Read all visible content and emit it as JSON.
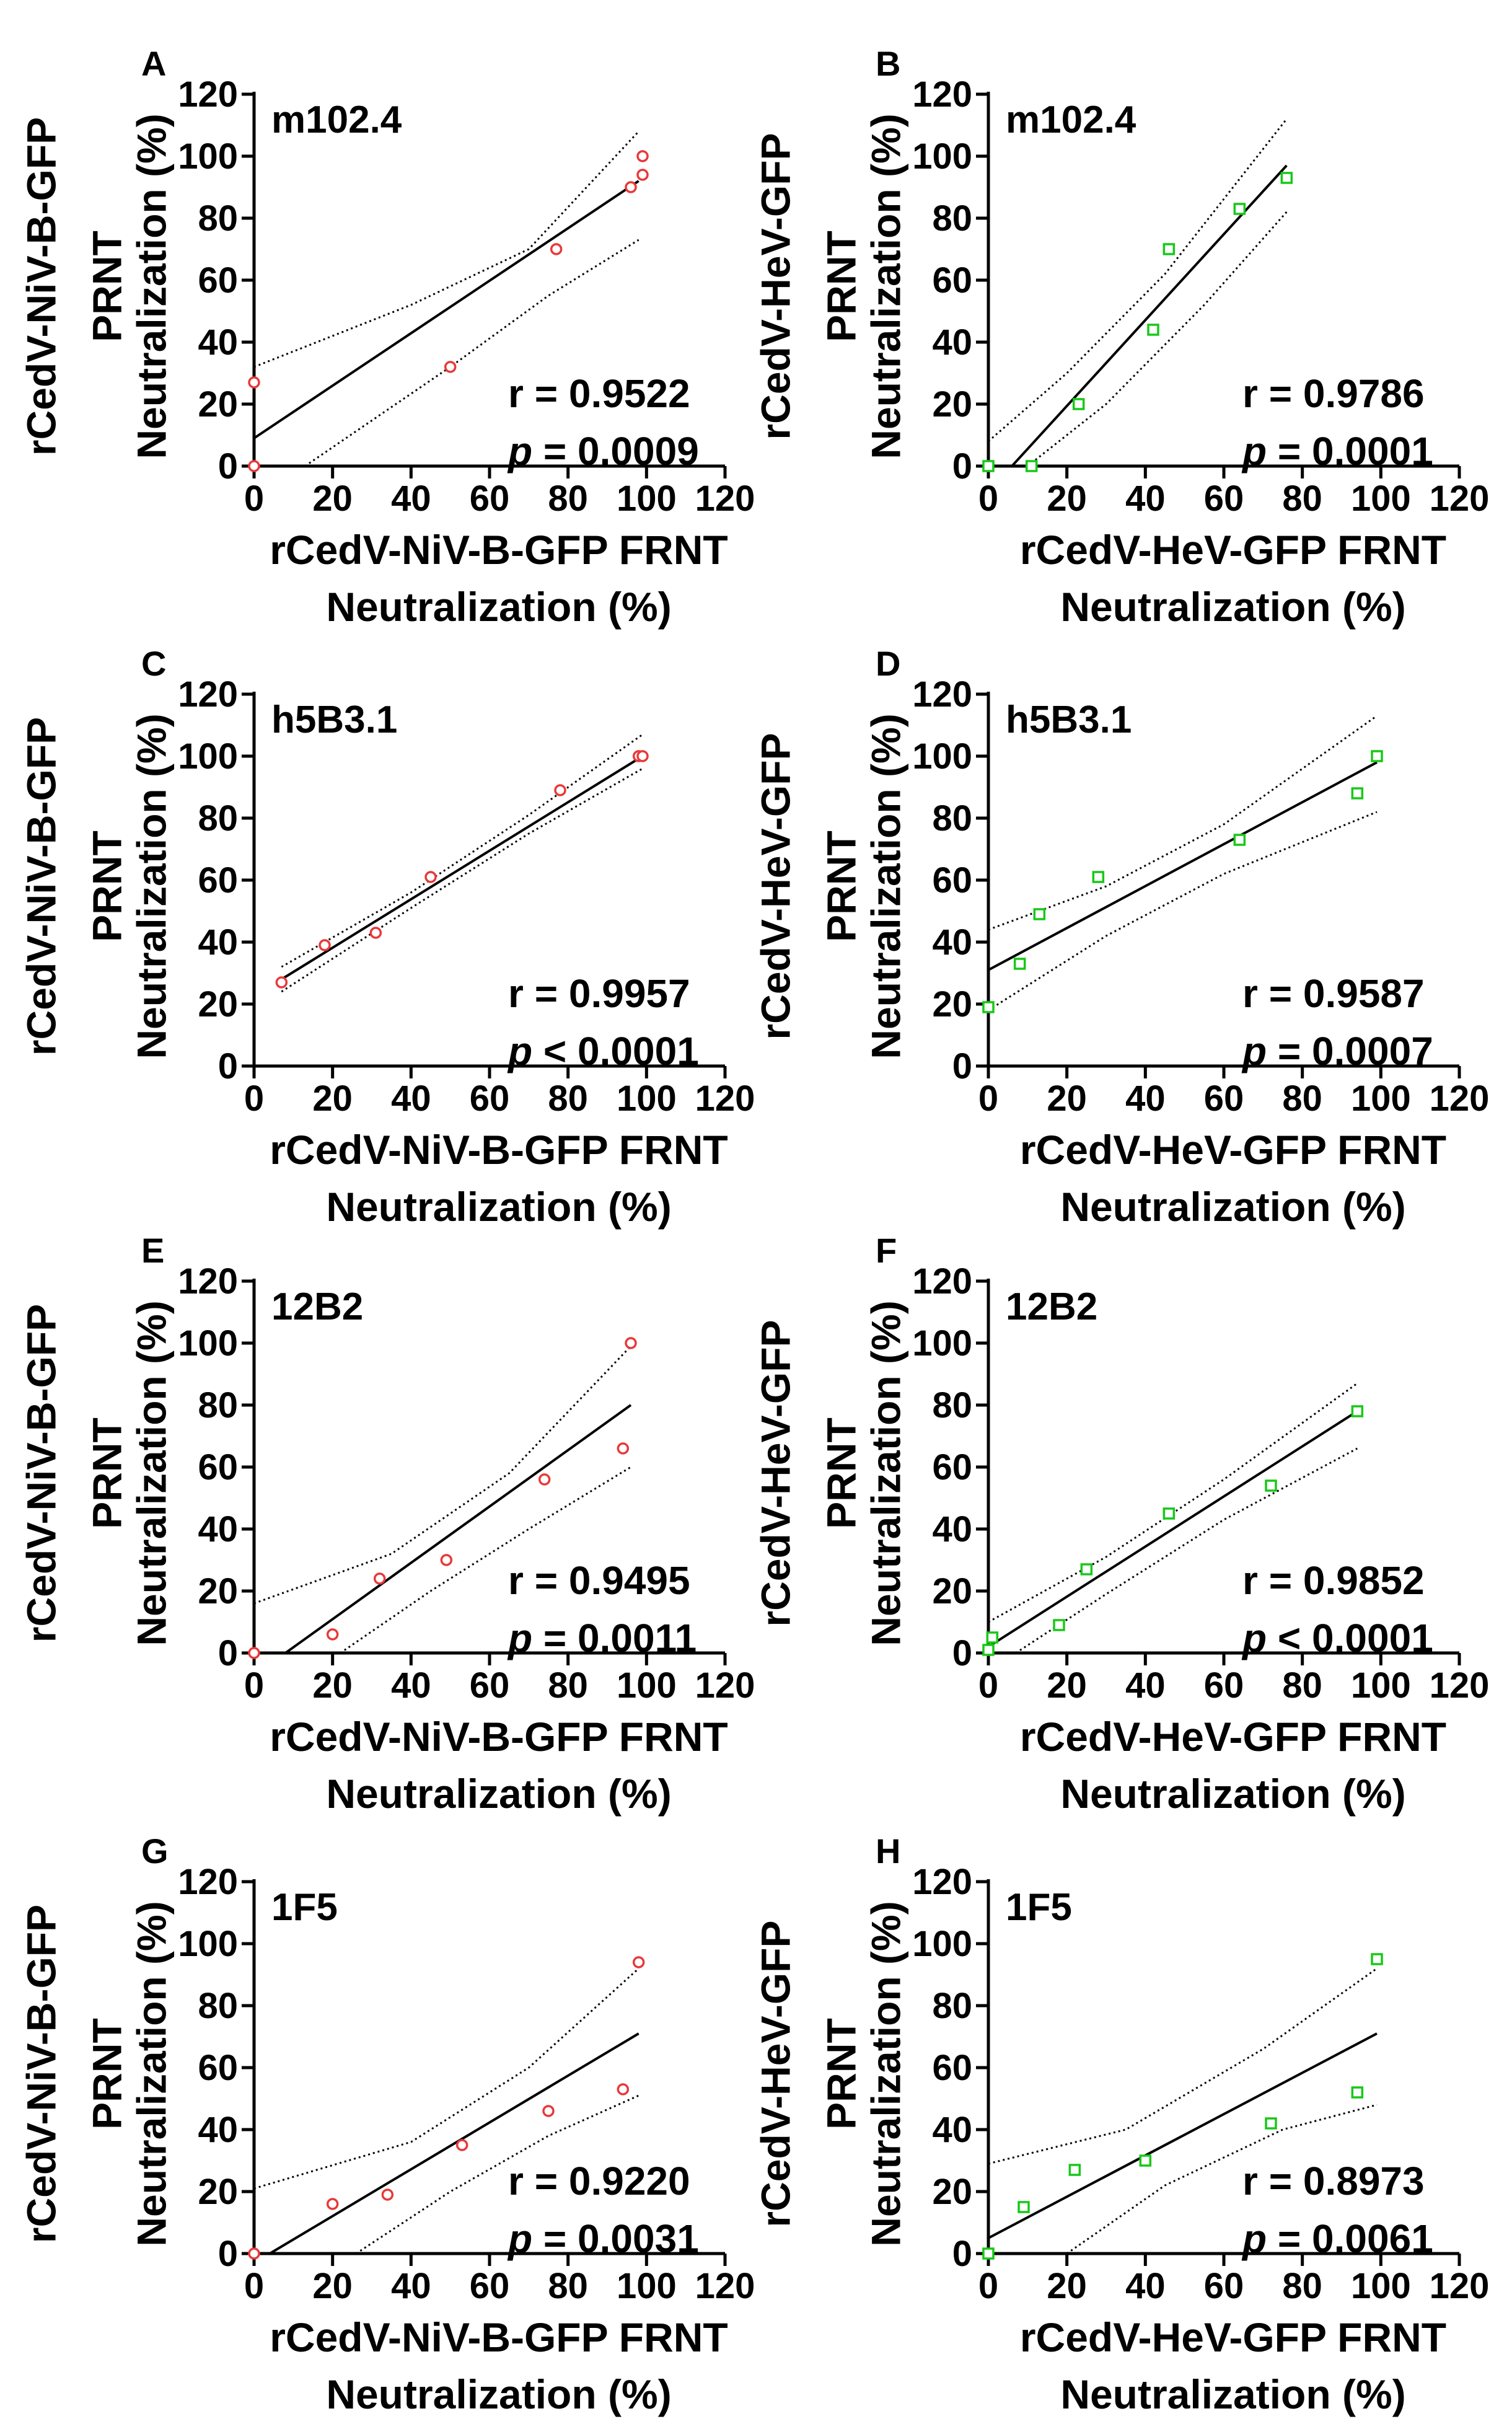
{
  "figure": {
    "colors": {
      "niv": "#e8393a",
      "hev": "#18c818",
      "line": "#000000"
    }
  },
  "chart_data": [
    {
      "type": "scatter",
      "panel_letter": "A",
      "antibody": "m102.4",
      "ylabel": [
        "rCedV-NiV-B-GFP",
        "PRNT",
        "Neutralization (%)"
      ],
      "xlabel": [
        "rCedV-NiV-B-GFP FRNT",
        "Neutralization (%)"
      ],
      "xlim": [
        0,
        120
      ],
      "ylim": [
        0,
        120
      ],
      "x_ticks": [
        "0",
        "20",
        "40",
        "60",
        "80",
        "100",
        "120"
      ],
      "y_ticks": [
        "0",
        "20",
        "40",
        "60",
        "80",
        "100",
        "120"
      ],
      "points": [
        [
          0,
          0
        ],
        [
          0,
          27
        ],
        [
          50,
          32
        ],
        [
          77,
          70
        ],
        [
          96,
          90
        ],
        [
          99,
          94
        ],
        [
          99,
          100
        ]
      ],
      "fit": [
        [
          0,
          9
        ],
        [
          98,
          92
        ]
      ],
      "ci_upper": [
        [
          0,
          32
        ],
        [
          40,
          52
        ],
        [
          70,
          70
        ],
        [
          98,
          108
        ]
      ],
      "ci_lower": [
        [
          13,
          0
        ],
        [
          50,
          32
        ],
        [
          75,
          55
        ],
        [
          98,
          73
        ]
      ],
      "r_text": "r = 0.9522",
      "p_label": "p",
      "p_value": "= 0.0009",
      "marker": "circle",
      "series_color": "niv"
    },
    {
      "type": "scatter",
      "panel_letter": "B",
      "antibody": "m102.4",
      "ylabel": [
        "rCedV-HeV-GFP",
        "PRNT",
        "Neutralization (%)"
      ],
      "xlabel": [
        "rCedV-HeV-GFP FRNT",
        "Neutralization (%)"
      ],
      "xlim": [
        0,
        120
      ],
      "ylim": [
        0,
        120
      ],
      "x_ticks": [
        "0",
        "20",
        "40",
        "60",
        "80",
        "100",
        "120"
      ],
      "y_ticks": [
        "0",
        "20",
        "40",
        "60",
        "80",
        "100",
        "120"
      ],
      "points": [
        [
          0,
          0
        ],
        [
          11,
          0
        ],
        [
          23,
          20
        ],
        [
          42,
          44
        ],
        [
          46,
          70
        ],
        [
          64,
          83
        ],
        [
          76,
          93
        ]
      ],
      "fit": [
        [
          6,
          0
        ],
        [
          76,
          97
        ]
      ],
      "ci_upper": [
        [
          0,
          8
        ],
        [
          20,
          30
        ],
        [
          45,
          62
        ],
        [
          76,
          112
        ]
      ],
      "ci_lower": [
        [
          10,
          0
        ],
        [
          30,
          20
        ],
        [
          55,
          52
        ],
        [
          76,
          82
        ]
      ],
      "r_text": "r = 0.9786",
      "p_label": "p",
      "p_value": "= 0.0001",
      "marker": "square",
      "series_color": "hev"
    },
    {
      "type": "scatter",
      "panel_letter": "C",
      "antibody": "h5B3.1",
      "ylabel": [
        "rCedV-NiV-B-GFP",
        "PRNT",
        "Neutralization (%)"
      ],
      "xlabel": [
        "rCedV-NiV-B-GFP FRNT",
        "Neutralization (%)"
      ],
      "xlim": [
        0,
        120
      ],
      "ylim": [
        0,
        120
      ],
      "x_ticks": [
        "0",
        "20",
        "40",
        "60",
        "80",
        "100",
        "120"
      ],
      "y_ticks": [
        "0",
        "20",
        "40",
        "60",
        "80",
        "100",
        "120"
      ],
      "points": [
        [
          7,
          27
        ],
        [
          18,
          39
        ],
        [
          31,
          43
        ],
        [
          45,
          61
        ],
        [
          78,
          89
        ],
        [
          98,
          100
        ],
        [
          99,
          100
        ]
      ],
      "fit": [
        [
          7,
          28
        ],
        [
          99,
          100
        ]
      ],
      "ci_upper": [
        [
          7,
          32
        ],
        [
          40,
          56
        ],
        [
          70,
          81
        ],
        [
          99,
          107
        ]
      ],
      "ci_lower": [
        [
          7,
          24
        ],
        [
          40,
          51
        ],
        [
          70,
          75
        ],
        [
          99,
          96
        ]
      ],
      "r_text": "r = 0.9957",
      "p_label": "p",
      "p_value": "< 0.0001",
      "marker": "circle",
      "series_color": "niv"
    },
    {
      "type": "scatter",
      "panel_letter": "D",
      "antibody": "h5B3.1",
      "ylabel": [
        "rCedV-HeV-GFP",
        "PRNT",
        "Neutralization (%)"
      ],
      "xlabel": [
        "rCedV-HeV-GFP FRNT",
        "Neutralization (%)"
      ],
      "xlim": [
        0,
        120
      ],
      "ylim": [
        0,
        120
      ],
      "x_ticks": [
        "0",
        "20",
        "40",
        "60",
        "80",
        "100",
        "120"
      ],
      "y_ticks": [
        "0",
        "20",
        "40",
        "60",
        "80",
        "100",
        "120"
      ],
      "points": [
        [
          0,
          19
        ],
        [
          8,
          33
        ],
        [
          13,
          49
        ],
        [
          28,
          61
        ],
        [
          64,
          73
        ],
        [
          94,
          88
        ],
        [
          99,
          100
        ]
      ],
      "fit": [
        [
          0,
          31
        ],
        [
          99,
          98
        ]
      ],
      "ci_upper": [
        [
          0,
          44
        ],
        [
          30,
          58
        ],
        [
          60,
          78
        ],
        [
          99,
          113
        ]
      ],
      "ci_lower": [
        [
          0,
          18
        ],
        [
          30,
          42
        ],
        [
          60,
          62
        ],
        [
          99,
          82
        ]
      ],
      "r_text": "r = 0.9587",
      "p_label": "p",
      "p_value": "= 0.0007",
      "marker": "square",
      "series_color": "hev"
    },
    {
      "type": "scatter",
      "panel_letter": "E",
      "antibody": "12B2",
      "ylabel": [
        "rCedV-NiV-B-GFP",
        "PRNT",
        "Neutralization (%)"
      ],
      "xlabel": [
        "rCedV-NiV-B-GFP FRNT",
        "Neutralization (%)"
      ],
      "xlim": [
        0,
        120
      ],
      "ylim": [
        0,
        120
      ],
      "x_ticks": [
        "0",
        "20",
        "40",
        "60",
        "80",
        "100",
        "120"
      ],
      "y_ticks": [
        "0",
        "20",
        "40",
        "60",
        "80",
        "100",
        "120"
      ],
      "points": [
        [
          0,
          0
        ],
        [
          20,
          6
        ],
        [
          32,
          24
        ],
        [
          49,
          30
        ],
        [
          74,
          56
        ],
        [
          94,
          66
        ],
        [
          96,
          100
        ]
      ],
      "fit": [
        [
          8,
          0
        ],
        [
          96,
          80
        ]
      ],
      "ci_upper": [
        [
          0,
          16
        ],
        [
          35,
          32
        ],
        [
          65,
          58
        ],
        [
          96,
          99
        ]
      ],
      "ci_lower": [
        [
          22,
          0
        ],
        [
          45,
          20
        ],
        [
          70,
          40
        ],
        [
          96,
          60
        ]
      ],
      "r_text": "r = 0.9495",
      "p_label": "p",
      "p_value": "= 0.0011",
      "marker": "circle",
      "series_color": "niv"
    },
    {
      "type": "scatter",
      "panel_letter": "F",
      "antibody": "12B2",
      "ylabel": [
        "rCedV-HeV-GFP",
        "PRNT",
        "Neutralization (%)"
      ],
      "xlabel": [
        "rCedV-HeV-GFP FRNT",
        "Neutralization (%)"
      ],
      "xlim": [
        0,
        120
      ],
      "ylim": [
        0,
        120
      ],
      "x_ticks": [
        "0",
        "20",
        "40",
        "60",
        "80",
        "100",
        "120"
      ],
      "y_ticks": [
        "0",
        "20",
        "40",
        "60",
        "80",
        "100",
        "120"
      ],
      "points": [
        [
          0,
          1
        ],
        [
          1,
          5
        ],
        [
          18,
          9
        ],
        [
          25,
          27
        ],
        [
          46,
          45
        ],
        [
          72,
          54
        ],
        [
          94,
          78
        ]
      ],
      "fit": [
        [
          0,
          2
        ],
        [
          94,
          78
        ]
      ],
      "ci_upper": [
        [
          0,
          10
        ],
        [
          30,
          31
        ],
        [
          60,
          56
        ],
        [
          94,
          87
        ]
      ],
      "ci_lower": [
        [
          7,
          0
        ],
        [
          30,
          19
        ],
        [
          60,
          43
        ],
        [
          94,
          66
        ]
      ],
      "r_text": "r = 0.9852",
      "p_label": "p",
      "p_value": "< 0.0001",
      "marker": "square",
      "series_color": "hev"
    },
    {
      "type": "scatter",
      "panel_letter": "G",
      "antibody": "1F5",
      "ylabel": [
        "rCedV-NiV-B-GFP",
        "PRNT",
        "Neutralization (%)"
      ],
      "xlabel": [
        "rCedV-NiV-B-GFP FRNT",
        "Neutralization (%)"
      ],
      "xlim": [
        0,
        120
      ],
      "ylim": [
        0,
        120
      ],
      "x_ticks": [
        "0",
        "20",
        "40",
        "60",
        "80",
        "100",
        "120"
      ],
      "y_ticks": [
        "0",
        "20",
        "40",
        "60",
        "80",
        "100",
        "120"
      ],
      "points": [
        [
          0,
          0
        ],
        [
          20,
          16
        ],
        [
          34,
          19
        ],
        [
          53,
          35
        ],
        [
          75,
          46
        ],
        [
          94,
          53
        ],
        [
          98,
          94
        ]
      ],
      "fit": [
        [
          4,
          0
        ],
        [
          98,
          71
        ]
      ],
      "ci_upper": [
        [
          0,
          21
        ],
        [
          40,
          36
        ],
        [
          70,
          60
        ],
        [
          98,
          92
        ]
      ],
      "ci_lower": [
        [
          26,
          0
        ],
        [
          50,
          20
        ],
        [
          75,
          38
        ],
        [
          98,
          51
        ]
      ],
      "r_text": "r = 0.9220",
      "p_label": "p",
      "p_value": "= 0.0031",
      "marker": "circle",
      "series_color": "niv"
    },
    {
      "type": "scatter",
      "panel_letter": "H",
      "antibody": "1F5",
      "ylabel": [
        "rCedV-HeV-GFP",
        "PRNT",
        "Neutralization (%)"
      ],
      "xlabel": [
        "rCedV-HeV-GFP FRNT",
        "Neutralization (%)"
      ],
      "xlim": [
        0,
        120
      ],
      "ylim": [
        0,
        120
      ],
      "x_ticks": [
        "0",
        "20",
        "40",
        "60",
        "80",
        "100",
        "120"
      ],
      "y_ticks": [
        "0",
        "20",
        "40",
        "60",
        "80",
        "100",
        "120"
      ],
      "points": [
        [
          0,
          0
        ],
        [
          9,
          15
        ],
        [
          22,
          27
        ],
        [
          40,
          30
        ],
        [
          72,
          42
        ],
        [
          94,
          52
        ],
        [
          99,
          95
        ]
      ],
      "fit": [
        [
          0,
          5
        ],
        [
          99,
          71
        ]
      ],
      "ci_upper": [
        [
          0,
          29
        ],
        [
          35,
          40
        ],
        [
          70,
          66
        ],
        [
          99,
          92
        ]
      ],
      "ci_lower": [
        [
          20,
          0
        ],
        [
          45,
          22
        ],
        [
          75,
          40
        ],
        [
          99,
          48
        ]
      ],
      "r_text": "r = 0.8973",
      "p_label": "p",
      "p_value": "= 0.0061",
      "marker": "square",
      "series_color": "hev"
    }
  ]
}
